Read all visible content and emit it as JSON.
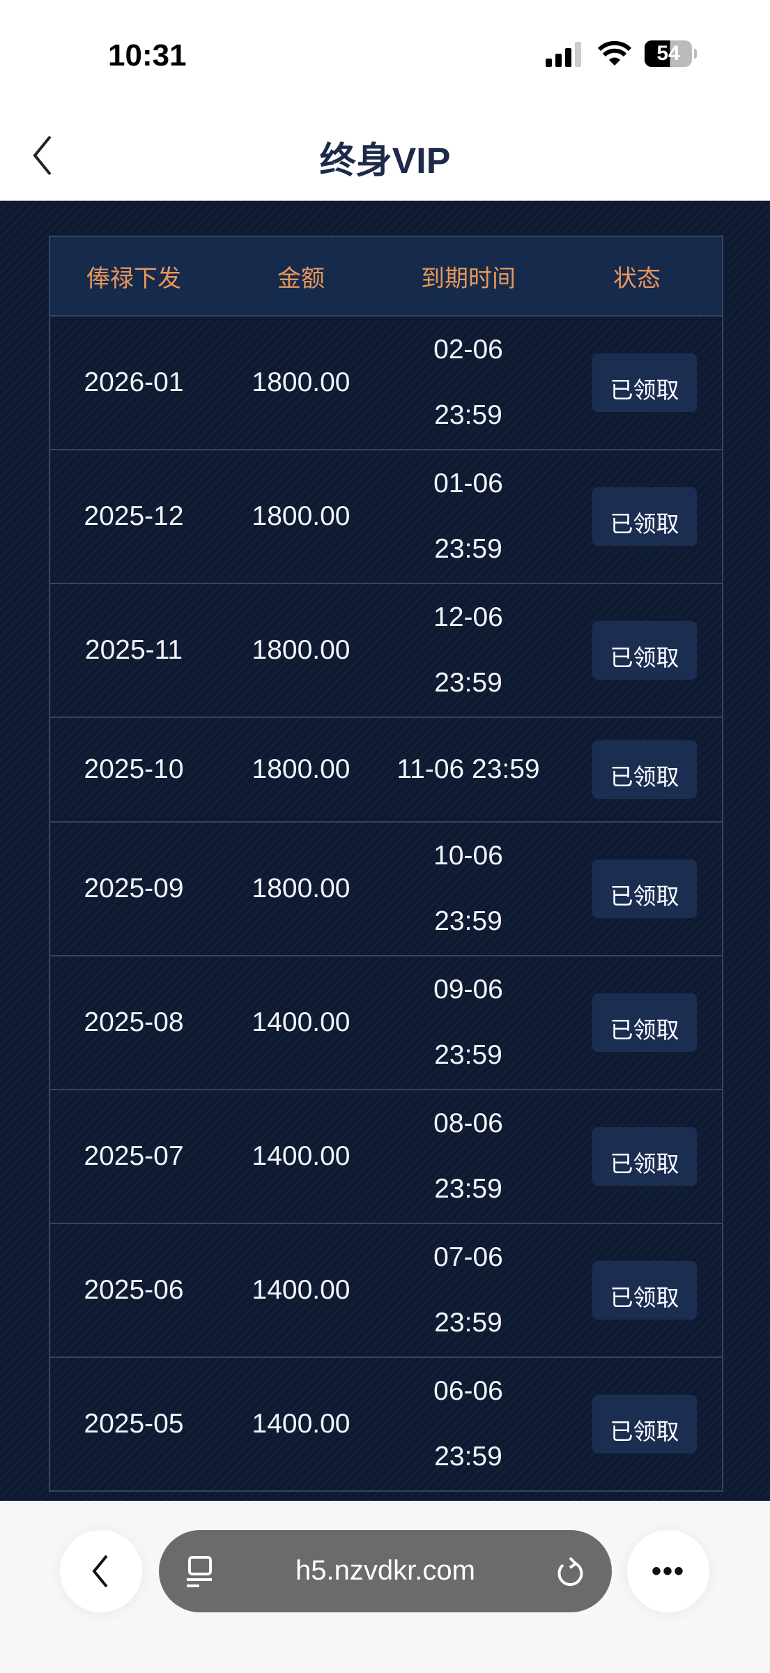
{
  "status_bar": {
    "time": "10:31",
    "battery": "54"
  },
  "nav": {
    "title": "终身VIP"
  },
  "table": {
    "headers": [
      "俸禄下发",
      "金额",
      "到期时间",
      "状态"
    ],
    "rows": [
      {
        "period": "2026-01",
        "amount": "1800.00",
        "expiry_date": "02-06",
        "expiry_time": "23:59",
        "status": "已领取"
      },
      {
        "period": "2025-12",
        "amount": "1800.00",
        "expiry_date": "01-06",
        "expiry_time": "23:59",
        "status": "已领取"
      },
      {
        "period": "2025-11",
        "amount": "1800.00",
        "expiry_date": "12-06",
        "expiry_time": "23:59",
        "status": "已领取"
      },
      {
        "period": "2025-10",
        "amount": "1800.00",
        "expiry_date": "11-06 23:59",
        "expiry_time": "",
        "status": "已领取"
      },
      {
        "period": "2025-09",
        "amount": "1800.00",
        "expiry_date": "10-06",
        "expiry_time": "23:59",
        "status": "已领取"
      },
      {
        "period": "2025-08",
        "amount": "1400.00",
        "expiry_date": "09-06",
        "expiry_time": "23:59",
        "status": "已领取"
      },
      {
        "period": "2025-07",
        "amount": "1400.00",
        "expiry_date": "08-06",
        "expiry_time": "23:59",
        "status": "已领取"
      },
      {
        "period": "2025-06",
        "amount": "1400.00",
        "expiry_date": "07-06",
        "expiry_time": "23:59",
        "status": "已领取"
      },
      {
        "period": "2025-05",
        "amount": "1400.00",
        "expiry_date": "06-06",
        "expiry_time": "23:59",
        "status": "已领取"
      }
    ]
  },
  "browser": {
    "url": "h5.nzvdkr.com"
  },
  "colors": {
    "header_text": "#e8975a",
    "background": "#0e1a31",
    "header_bg": "#162a4c",
    "button_bg": "#1b2e52"
  }
}
